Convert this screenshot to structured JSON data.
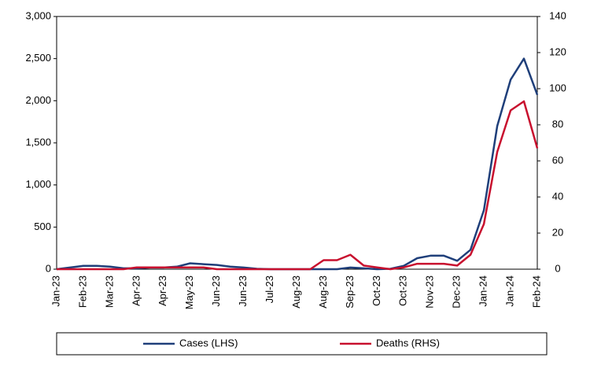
{
  "chart_data": {
    "type": "line",
    "categories": [
      "Jan-23",
      null,
      "Feb-23",
      null,
      "Mar-23",
      null,
      "Apr-23",
      null,
      "Apr-23",
      null,
      "May-23",
      null,
      "Jun-23",
      null,
      "Jun-23",
      null,
      "Jul-23",
      null,
      "Aug-23",
      null,
      "Aug-23",
      null,
      "Sep-23",
      null,
      "Oct-23",
      null,
      "Oct-23",
      null,
      "Nov-23",
      null,
      "Dec-23",
      null,
      "Jan-24",
      null,
      "Jan-24",
      null,
      "Feb-24"
    ],
    "series": [
      {
        "name": "Cases (LHS)",
        "color": "#1f3f7a",
        "axis": "y",
        "values": [
          0,
          20,
          40,
          40,
          30,
          10,
          10,
          20,
          20,
          30,
          70,
          60,
          50,
          30,
          20,
          5,
          0,
          0,
          0,
          0,
          0,
          0,
          20,
          10,
          0,
          5,
          40,
          130,
          160,
          160,
          100,
          230,
          700,
          1700,
          2250,
          2500,
          2070
        ]
      },
      {
        "name": "Deaths (RHS)",
        "color": "#c8102e",
        "axis": "y2",
        "values": [
          0,
          0,
          0,
          0,
          0,
          0,
          1,
          1,
          1,
          1,
          1,
          1,
          0,
          0,
          0,
          0,
          0,
          0,
          0,
          0,
          5,
          5,
          8,
          2,
          1,
          0,
          1,
          3,
          3,
          3,
          2,
          8,
          25,
          65,
          88,
          93,
          67
        ]
      }
    ],
    "ylim": [
      0,
      3000
    ],
    "yticks": [
      0,
      500,
      {
        "value": 1000,
        "label": "1,000"
      },
      {
        "value": 1500,
        "label": "1,500"
      },
      {
        "value": 2000,
        "label": "2,000"
      },
      {
        "value": 2500,
        "label": "2,500"
      },
      {
        "value": 3000,
        "label": "3,000"
      }
    ],
    "y2lim": [
      0,
      140
    ],
    "y2ticks": [
      0,
      20,
      40,
      60,
      80,
      100,
      120,
      140
    ],
    "legend": "bottom"
  }
}
